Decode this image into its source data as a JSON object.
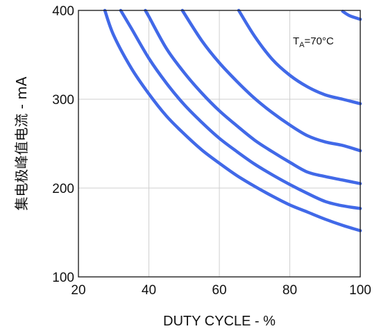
{
  "chart_data": {
    "type": "line",
    "title": "",
    "xlabel": "DUTY CYCLE - %",
    "ylabel": "集电极峰值电流 - mA",
    "xlim": [
      20,
      100
    ],
    "ylim": [
      100,
      400
    ],
    "xticks": [
      20,
      40,
      60,
      80,
      100
    ],
    "yticks": [
      100,
      200,
      300,
      400
    ],
    "xtick_labels": [
      "20",
      "40",
      "60",
      "80",
      "100"
    ],
    "ytick_labels": [
      "100",
      "200",
      "300",
      "400"
    ],
    "grid": true,
    "line_color": "#4169e8",
    "annotation": {
      "main": "T",
      "sub": "A",
      "rest": "=70°C"
    },
    "series": [
      {
        "x": [
          27.5,
          30,
          35,
          40,
          45,
          50,
          55,
          60,
          65,
          70,
          75,
          80,
          85,
          90,
          95,
          100
        ],
        "y": [
          400,
          372,
          335,
          306,
          281,
          261,
          243,
          228,
          214,
          202,
          191,
          181,
          173,
          165,
          158,
          152
        ]
      },
      {
        "x": [
          32,
          35,
          40,
          45,
          50,
          55,
          60,
          65,
          70,
          75,
          80,
          85,
          90,
          95,
          100
        ],
        "y": [
          400,
          380,
          346,
          318,
          294,
          274,
          256,
          241,
          227,
          215,
          204,
          194,
          185,
          180,
          177
        ]
      },
      {
        "x": [
          39,
          40,
          45,
          50,
          55,
          60,
          65,
          70,
          75,
          80,
          85,
          90,
          95,
          100
        ],
        "y": [
          400,
          393,
          357,
          330,
          307,
          287,
          270,
          254,
          241,
          229,
          218,
          213,
          209,
          205
        ]
      },
      {
        "x": [
          49.5,
          55,
          60,
          65,
          70,
          75,
          80,
          85,
          90,
          95,
          100
        ],
        "y": [
          400,
          366,
          341,
          320,
          301,
          285,
          271,
          259,
          252,
          248,
          242
        ]
      },
      {
        "x": [
          65.5,
          70,
          75,
          80,
          85,
          90,
          95,
          100
        ],
        "y": [
          400,
          371,
          345,
          327,
          314,
          305,
          300,
          295
        ]
      },
      {
        "x": [
          95,
          97,
          100
        ],
        "y": [
          399,
          394,
          390
        ]
      }
    ]
  }
}
